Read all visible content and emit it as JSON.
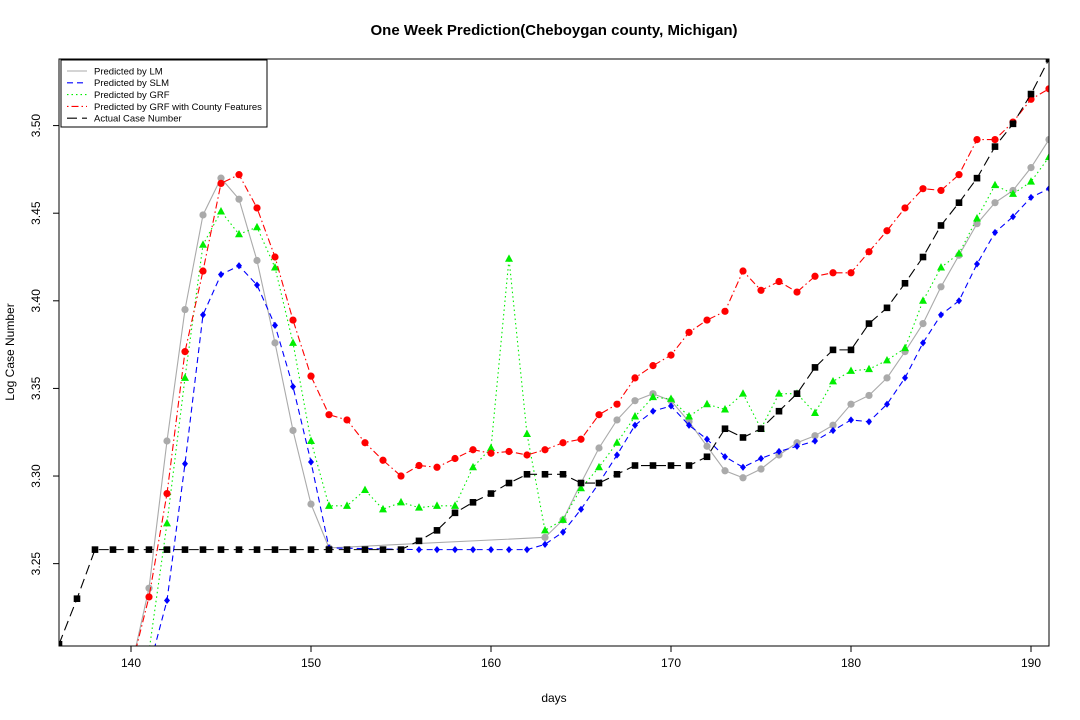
{
  "chart_data": {
    "type": "line",
    "title": "One Week Prediction(Cheboygan county, Michigan)",
    "xlabel": "days",
    "ylabel": "Log Case Number",
    "xlim": [
      136,
      191
    ],
    "ylim": [
      3.203,
      3.538
    ],
    "x_ticks": [
      140,
      150,
      160,
      170,
      180,
      190
    ],
    "y_ticks": [
      3.25,
      3.3,
      3.35,
      3.4,
      3.45,
      3.5
    ],
    "y_tick_labels": [
      "3.25",
      "3.30",
      "3.35",
      "3.40",
      "3.45",
      "3.50"
    ],
    "grid": false,
    "legend_position": "top-left",
    "series": [
      {
        "name": "Predicted by LM",
        "color": "#aaaaaa",
        "line": "solid",
        "marker": "circle",
        "x": [
          140,
          141,
          142,
          143,
          144,
          145,
          146,
          147,
          148,
          149,
          150,
          151,
          163,
          164,
          165,
          166,
          167,
          168,
          169,
          170,
          171,
          172,
          173,
          174,
          175,
          176,
          177,
          178,
          179,
          180,
          181,
          182,
          183,
          184,
          185,
          186,
          187,
          188,
          189,
          190,
          191
        ],
        "y": [
          3.19,
          3.236,
          3.32,
          3.395,
          3.449,
          3.47,
          3.458,
          3.423,
          3.376,
          3.326,
          3.284,
          3.259,
          3.265,
          3.275,
          3.296,
          3.316,
          3.332,
          3.343,
          3.347,
          3.343,
          3.331,
          3.317,
          3.303,
          3.299,
          3.304,
          3.312,
          3.319,
          3.323,
          3.329,
          3.341,
          3.346,
          3.356,
          3.371,
          3.387,
          3.408,
          3.426,
          3.444,
          3.456,
          3.463,
          3.476,
          3.492
        ]
      },
      {
        "name": "Predicted by SLM",
        "color": "#0000ff",
        "line": "dashed",
        "marker": "diamond",
        "x": [
          141,
          142,
          143,
          144,
          145,
          146,
          147,
          148,
          149,
          150,
          151,
          156,
          157,
          158,
          159,
          160,
          161,
          162,
          163,
          164,
          165,
          166,
          167,
          168,
          169,
          170,
          171,
          172,
          173,
          174,
          175,
          176,
          177,
          178,
          179,
          180,
          181,
          182,
          183,
          184,
          185,
          186,
          187,
          188,
          189,
          190,
          191
        ],
        "y": [
          3.19,
          3.229,
          3.307,
          3.392,
          3.415,
          3.42,
          3.409,
          3.386,
          3.351,
          3.308,
          3.259,
          3.258,
          3.258,
          3.258,
          3.258,
          3.258,
          3.258,
          3.258,
          3.261,
          3.268,
          3.281,
          3.296,
          3.312,
          3.329,
          3.337,
          3.34,
          3.329,
          3.321,
          3.311,
          3.305,
          3.31,
          3.314,
          3.317,
          3.32,
          3.326,
          3.332,
          3.331,
          3.341,
          3.356,
          3.376,
          3.392,
          3.4,
          3.421,
          3.439,
          3.448,
          3.459,
          3.464
        ]
      },
      {
        "name": "Predicted by GRF",
        "color": "#00ee00",
        "line": "dotted",
        "marker": "triangle",
        "x": [
          141,
          142,
          143,
          144,
          145,
          146,
          147,
          148,
          149,
          150,
          151,
          152,
          153,
          154,
          155,
          156,
          157,
          158,
          159,
          160,
          161,
          162,
          163,
          164,
          165,
          166,
          167,
          168,
          169,
          170,
          171,
          172,
          173,
          174,
          175,
          176,
          177,
          178,
          179,
          180,
          181,
          182,
          183,
          184,
          185,
          186,
          187,
          188,
          189,
          190,
          191
        ],
        "y": [
          3.2,
          3.273,
          3.356,
          3.432,
          3.451,
          3.438,
          3.442,
          3.419,
          3.376,
          3.32,
          3.283,
          3.283,
          3.292,
          3.281,
          3.285,
          3.282,
          3.283,
          3.283,
          3.305,
          3.316,
          3.424,
          3.324,
          3.269,
          3.275,
          3.293,
          3.305,
          3.319,
          3.334,
          3.345,
          3.344,
          3.334,
          3.341,
          3.338,
          3.347,
          3.327,
          3.347,
          3.347,
          3.336,
          3.354,
          3.36,
          3.361,
          3.366,
          3.373,
          3.4,
          3.419,
          3.427,
          3.447,
          3.466,
          3.461,
          3.468,
          3.482
        ]
      },
      {
        "name": "Predicted by GRF with County Features",
        "color": "#ff0000",
        "line": "dotdash",
        "marker": "circle",
        "x": [
          140,
          141,
          142,
          143,
          144,
          145,
          146,
          147,
          148,
          149,
          150,
          151,
          152,
          153,
          154,
          155,
          156,
          157,
          158,
          159,
          160,
          161,
          162,
          163,
          164,
          165,
          166,
          167,
          168,
          169,
          170,
          171,
          172,
          173,
          174,
          175,
          176,
          177,
          178,
          179,
          180,
          181,
          182,
          183,
          184,
          185,
          186,
          187,
          188,
          189,
          190,
          191
        ],
        "y": [
          3.19,
          3.231,
          3.29,
          3.371,
          3.417,
          3.467,
          3.472,
          3.453,
          3.425,
          3.389,
          3.357,
          3.335,
          3.332,
          3.319,
          3.309,
          3.3,
          3.306,
          3.305,
          3.31,
          3.315,
          3.313,
          3.314,
          3.312,
          3.315,
          3.319,
          3.321,
          3.335,
          3.341,
          3.356,
          3.363,
          3.369,
          3.382,
          3.389,
          3.394,
          3.417,
          3.406,
          3.411,
          3.405,
          3.414,
          3.416,
          3.416,
          3.428,
          3.44,
          3.453,
          3.464,
          3.463,
          3.472,
          3.492,
          3.492,
          3.502,
          3.515,
          3.521
        ]
      },
      {
        "name": "Actual Case Number",
        "color": "#000000",
        "line": "longdash",
        "marker": "square",
        "x": [
          136,
          137,
          138,
          139,
          140,
          141,
          142,
          143,
          144,
          145,
          146,
          147,
          148,
          149,
          150,
          151,
          152,
          153,
          154,
          155,
          156,
          157,
          158,
          159,
          160,
          161,
          162,
          163,
          164,
          165,
          166,
          167,
          168,
          169,
          170,
          171,
          172,
          173,
          174,
          175,
          176,
          177,
          178,
          179,
          180,
          181,
          182,
          183,
          184,
          185,
          186,
          187,
          188,
          189,
          190,
          191
        ],
        "y": [
          3.204,
          3.23,
          3.258,
          3.258,
          3.258,
          3.258,
          3.258,
          3.258,
          3.258,
          3.258,
          3.258,
          3.258,
          3.258,
          3.258,
          3.258,
          3.258,
          3.258,
          3.258,
          3.258,
          3.258,
          3.263,
          3.269,
          3.279,
          3.285,
          3.29,
          3.296,
          3.301,
          3.301,
          3.301,
          3.296,
          3.296,
          3.301,
          3.306,
          3.306,
          3.306,
          3.306,
          3.311,
          3.327,
          3.322,
          3.327,
          3.337,
          3.347,
          3.362,
          3.372,
          3.372,
          3.387,
          3.396,
          3.41,
          3.425,
          3.443,
          3.456,
          3.47,
          3.488,
          3.501,
          3.518,
          3.538
        ]
      }
    ]
  }
}
